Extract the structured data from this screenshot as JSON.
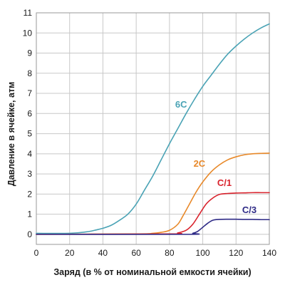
{
  "chart_data": {
    "type": "line",
    "title": "",
    "xlabel": "Заряд (в % от номинальной емкости ячейки)",
    "ylabel": "Давление в ячейке, атм",
    "xlim": [
      0,
      140
    ],
    "ylim": [
      -0.5,
      11
    ],
    "xticks": [
      "0",
      "20",
      "40",
      "60",
      "80",
      "100",
      "120",
      "140"
    ],
    "yticks": [
      "0",
      "1",
      "2",
      "3",
      "4",
      "5",
      "6",
      "7",
      "8",
      "9",
      "10",
      "11"
    ],
    "grid": true,
    "legend": "none",
    "series": [
      {
        "name": "6C",
        "color": "#4aa3b5",
        "x": [
          0,
          20,
          30,
          35,
          40,
          45,
          50,
          55,
          60,
          65,
          70,
          75,
          80,
          85,
          90,
          95,
          100,
          105,
          110,
          115,
          120,
          125,
          130,
          135,
          140
        ],
        "y": [
          0.05,
          0.05,
          0.12,
          0.2,
          0.3,
          0.45,
          0.7,
          1.0,
          1.5,
          2.2,
          2.9,
          3.7,
          4.5,
          5.25,
          6.0,
          6.7,
          7.35,
          7.9,
          8.45,
          8.95,
          9.35,
          9.7,
          10.0,
          10.25,
          10.45
        ]
      },
      {
        "name": "2C",
        "color": "#e8892a",
        "x": [
          0,
          60,
          70,
          75,
          80,
          85,
          88,
          92,
          96,
          100,
          105,
          110,
          115,
          120,
          125,
          130,
          135,
          140
        ],
        "y": [
          0.0,
          0.02,
          0.05,
          0.1,
          0.2,
          0.5,
          0.9,
          1.5,
          2.1,
          2.6,
          3.1,
          3.45,
          3.7,
          3.85,
          3.95,
          4.0,
          4.02,
          4.03
        ]
      },
      {
        "name": "C/1",
        "color": "#d9232d",
        "x": [
          0,
          80,
          85,
          90,
          94,
          98,
          102,
          106,
          110,
          115,
          120,
          125,
          130,
          135,
          140
        ],
        "y": [
          0.0,
          0.02,
          0.07,
          0.2,
          0.5,
          1.0,
          1.5,
          1.8,
          1.98,
          2.03,
          2.05,
          2.06,
          2.07,
          2.07,
          2.07
        ]
      },
      {
        "name": "C/3",
        "color": "#2e2a86",
        "x": [
          0,
          90,
          94,
          97,
          100,
          103,
          106,
          110,
          115,
          120,
          125,
          130,
          135,
          140
        ],
        "y": [
          0.0,
          0.0,
          0.05,
          0.15,
          0.35,
          0.55,
          0.7,
          0.74,
          0.75,
          0.75,
          0.74,
          0.74,
          0.73,
          0.73
        ]
      }
    ],
    "annotations": [
      {
        "text": "6C",
        "color": "#4aa3b5",
        "x": 87,
        "y": 6.3
      },
      {
        "text": "2C",
        "color": "#e8892a",
        "x": 98,
        "y": 3.35
      },
      {
        "text": "C/1",
        "color": "#d9232d",
        "x": 113,
        "y": 2.4
      },
      {
        "text": "C/3",
        "color": "#2e2a86",
        "x": 128,
        "y": 1.05
      }
    ]
  }
}
